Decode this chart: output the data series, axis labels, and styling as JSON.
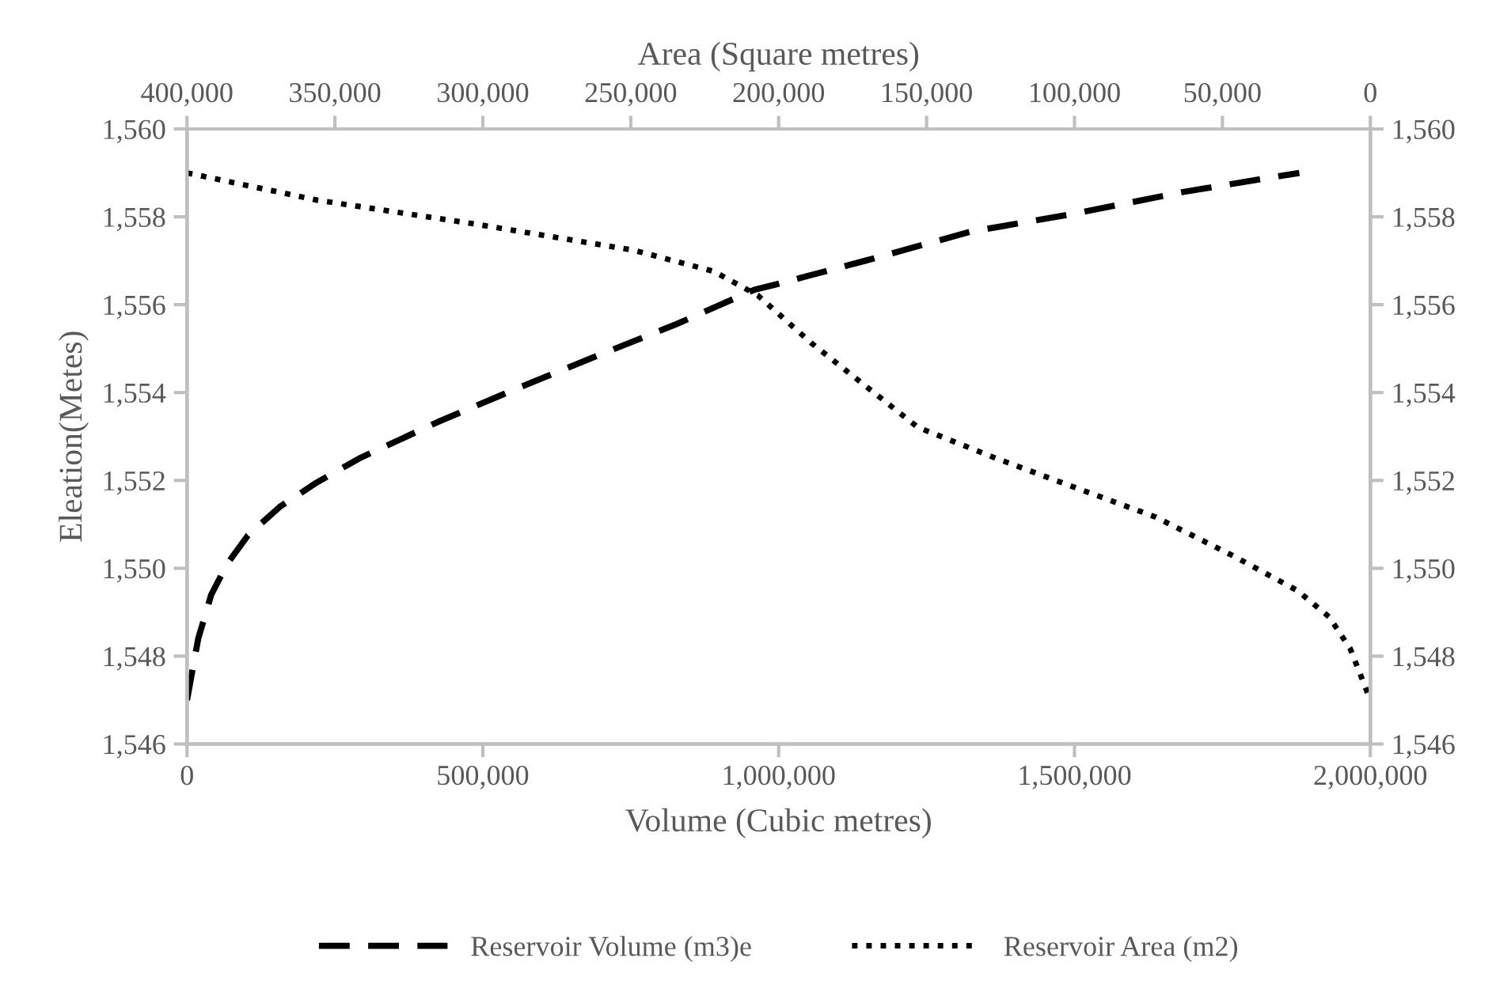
{
  "chart_data": {
    "type": "line",
    "xlabel": "Volume (Cubic metres)",
    "ylabel": "Eleation(Metes)",
    "x2label": "Area (Square metres)",
    "legend": "bottom",
    "grid": false,
    "xlim": [
      0,
      2000000
    ],
    "xticks": [
      0,
      {
        "value": 500000,
        "label": "500,000"
      },
      {
        "value": 1000000,
        "label": "1,000,000"
      },
      {
        "value": 1500000,
        "label": "1,500,000"
      },
      {
        "value": 2000000,
        "label": "2,000,000"
      }
    ],
    "x2lim": [
      400000,
      0
    ],
    "x2ticks": [
      {
        "value": 400000,
        "label": "400,000"
      },
      {
        "value": 350000,
        "label": "350,000"
      },
      {
        "value": 300000,
        "label": "300,000"
      },
      {
        "value": 250000,
        "label": "250,000"
      },
      {
        "value": 200000,
        "label": "200,000"
      },
      {
        "value": 150000,
        "label": "150,000"
      },
      {
        "value": 100000,
        "label": "100,000"
      },
      {
        "value": 50000,
        "label": "50,000"
      },
      0
    ],
    "ylim": [
      1546,
      1560
    ],
    "yticks": [
      {
        "value": 1546,
        "label": "1,546"
      },
      {
        "value": 1548,
        "label": "1,548"
      },
      {
        "value": 1550,
        "label": "1,550"
      },
      {
        "value": 1552,
        "label": "1,552"
      },
      {
        "value": 1554,
        "label": "1,554"
      },
      {
        "value": 1556,
        "label": "1,556"
      },
      {
        "value": 1558,
        "label": "1,558"
      },
      {
        "value": 1560,
        "label": "1,560"
      }
    ],
    "y2lim": [
      1546,
      1560
    ],
    "y2ticks": [
      {
        "value": 1546,
        "label": "1,546"
      },
      {
        "value": 1548,
        "label": "1,548"
      },
      {
        "value": 1550,
        "label": "1,550"
      },
      {
        "value": 1552,
        "label": "1,552"
      },
      {
        "value": 1554,
        "label": "1,554"
      },
      {
        "value": 1556,
        "label": "1,556"
      },
      {
        "value": 1558,
        "label": "1,558"
      },
      {
        "value": 1560,
        "label": "1,560"
      }
    ],
    "series": [
      {
        "name": "Reservoir Volume (m3)e",
        "color": "#000000",
        "line_style": "dashed",
        "x": [
          0,
          19000,
          41000,
          68000,
          103000,
          157000,
          219000,
          291000,
          424000,
          559000,
          692000,
          826000,
          959000,
          995000,
          1146000,
          1324000,
          1503000,
          1681000,
          1880000
        ],
        "values": [
          1547,
          1548.4,
          1549.4,
          1550.1,
          1550.75,
          1551.4,
          1551.95,
          1552.5,
          1553.33,
          1554.1,
          1554.83,
          1555.55,
          1556.34,
          1556.46,
          1557.0,
          1557.66,
          1558.08,
          1558.56,
          1559
        ]
      },
      {
        "name": "Reservoir Area (m2)",
        "color": "#000000",
        "line_style": "dotted",
        "axis": "x2",
        "x": [
          400000,
          356000,
          303000,
          249000,
          222000,
          207000,
          189000,
          171000,
          153000,
          126000,
          99500,
          72700,
          46000,
          24600,
          13900,
          6800,
          0
        ],
        "values": [
          1559,
          1558.38,
          1557.84,
          1557.24,
          1556.76,
          1556.21,
          1555.13,
          1554.17,
          1553.21,
          1552.49,
          1551.83,
          1551.17,
          1550.27,
          1549.49,
          1548.89,
          1548.17,
          1547
        ]
      }
    ]
  }
}
